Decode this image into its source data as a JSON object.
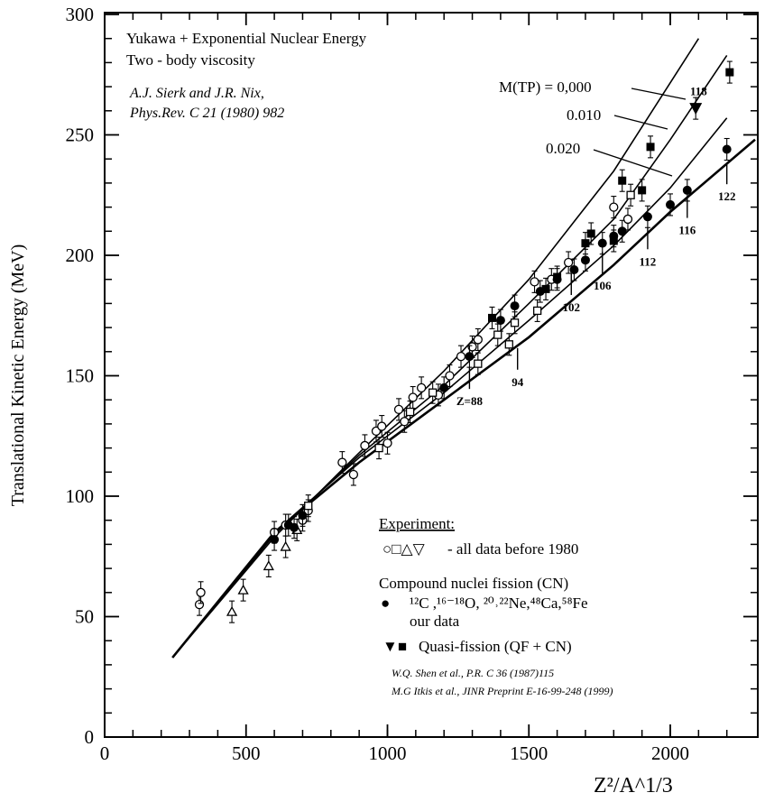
{
  "chart_data": {
    "type": "scatter",
    "title": "",
    "xlabel": "Z²/A^1/3",
    "ylabel": "Translational Kinetic Energy (MeV)",
    "xlim": [
      0,
      2300
    ],
    "ylim": [
      0,
      300
    ],
    "x_ticks": [
      "0",
      "500",
      "1000",
      "1500",
      "2000"
    ],
    "y_ticks": [
      "0",
      "50",
      "100",
      "150",
      "200",
      "250",
      "300"
    ],
    "grid": false,
    "annotations": {
      "model_line1": "Yukawa + Exponential Nuclear Energy",
      "model_line2": "Two - body viscosity",
      "ref_line1": "A.J. Sierk and J.R. Nix,",
      "ref_line2": "Phys.Rev. C 21 (1980) 982",
      "curve_label_0": "M(TP) = 0,000",
      "curve_label_1": "0.010",
      "curve_label_2": "0.020"
    },
    "curves": [
      {
        "label": "M(TP) = 0,000",
        "x": [
          240,
          600,
          900,
          1200,
          1500,
          1800,
          2100
        ],
        "y": [
          33,
          83,
          118,
          152,
          190,
          235,
          290
        ]
      },
      {
        "label": "0.010",
        "x": [
          240,
          600,
          900,
          1200,
          1500,
          1800,
          2000,
          2200
        ],
        "y": [
          33,
          84,
          117,
          146,
          180,
          215,
          248,
          283
        ]
      },
      {
        "label": "0.020",
        "x": [
          240,
          600,
          900,
          1200,
          1500,
          1800,
          2000,
          2200
        ],
        "y": [
          33,
          85,
          116,
          143,
          173,
          204,
          228,
          257
        ]
      },
      {
        "label": "",
        "x": [
          240,
          600,
          900,
          1200,
          1500,
          1800,
          2000,
          2300
        ],
        "y": [
          33,
          85,
          114,
          140,
          166,
          196,
          218,
          248
        ]
      }
    ],
    "element_markers": [
      {
        "label": "Z=88",
        "x": 1290,
        "y": 155
      },
      {
        "label": "94",
        "x": 1460,
        "y": 163
      },
      {
        "label": "102",
        "x": 1650,
        "y": 194
      },
      {
        "label": "106",
        "x": 1760,
        "y": 203
      },
      {
        "label": "112",
        "x": 1920,
        "y": 213
      },
      {
        "label": "116",
        "x": 2060,
        "y": 226
      },
      {
        "label": "122",
        "x": 2200,
        "y": 240
      },
      {
        "label": "118",
        "x": 2100,
        "y": 262
      }
    ],
    "series": [
      {
        "name": "○□△▽ - all data before 1980",
        "marker": "open-circle",
        "x": [
          335,
          340,
          600,
          640,
          700,
          720,
          840,
          880,
          920,
          960,
          980,
          1000,
          1040,
          1060,
          1090,
          1120,
          1180,
          1220,
          1260,
          1300,
          1320,
          1520,
          1580,
          1640,
          1800,
          1850
        ],
        "y": [
          55,
          60,
          85,
          88,
          90,
          94,
          114,
          109,
          121,
          127,
          129,
          122,
          136,
          131,
          141,
          145,
          142,
          150,
          158,
          162,
          165,
          189,
          190,
          197,
          220,
          215
        ]
      },
      {
        "name": "○□△▽ - all data before 1980",
        "marker": "open-square",
        "x": [
          720,
          970,
          1080,
          1160,
          1320,
          1390,
          1430,
          1450,
          1530,
          1860
        ],
        "y": [
          96,
          120,
          135,
          143,
          155,
          167,
          163,
          172,
          177,
          225
        ]
      },
      {
        "name": "○□△▽ - all data before 1980",
        "marker": "open-triangle",
        "x": [
          450,
          490,
          580,
          640,
          680
        ],
        "y": [
          52,
          61,
          71,
          79,
          86
        ]
      },
      {
        "name": "¹²C ,¹⁶⁻¹⁸O, ²⁰˒²²Ne,⁴⁸Ca,⁵⁸Fe our data",
        "marker": "filled-circle",
        "x": [
          600,
          650,
          670,
          700,
          1200,
          1290,
          1400,
          1450,
          1540,
          1600,
          1660,
          1700,
          1760,
          1800,
          1830,
          1920,
          2000,
          2060,
          2200
        ],
        "y": [
          82,
          88,
          87,
          92,
          145,
          158,
          173,
          179,
          185,
          190,
          194,
          198,
          205,
          208,
          210,
          216,
          221,
          227,
          244
        ]
      },
      {
        "name": "Quasi-fission (QF + CN)",
        "marker": "filled-square",
        "x": [
          1370,
          1560,
          1600,
          1700,
          1720,
          1800,
          1830,
          1900,
          1930,
          2210
        ],
        "y": [
          174,
          186,
          191,
          205,
          209,
          206,
          231,
          227,
          245,
          276
        ]
      },
      {
        "name": "Quasi-fission (QF + CN)",
        "marker": "filled-triangle-down",
        "x": [
          2090
        ],
        "y": [
          261
        ]
      }
    ],
    "legend": {
      "placement": "bottom-right",
      "title": "Experiment:",
      "open_symbols": "○□△▽",
      "open_text": "- all data before 1980",
      "cn_title": "Compound nuclei fission (CN)",
      "cn_sym": "●",
      "cn_nuclei": "¹²C ,¹⁶⁻¹⁸O, ²⁰˒²²Ne,⁴⁸Ca,⁵⁸Fe",
      "cn_note": "our data",
      "qf_sym": "▼■",
      "qf_text": "Quasi-fission (QF + CN)",
      "ref1": "W.Q. Shen et al., P.R. C 36 (1987)115",
      "ref2": "M.G Itkis et al., JINR Preprint E-16-99-248 (1999)"
    }
  }
}
